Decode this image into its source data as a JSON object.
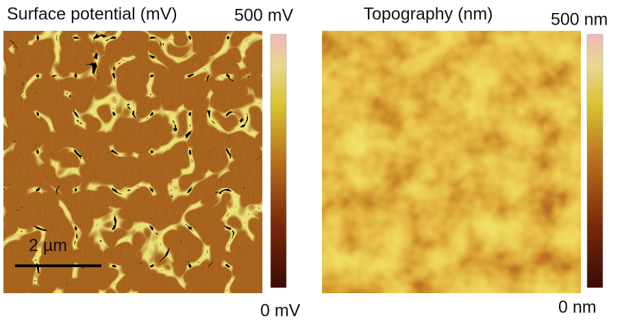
{
  "panels": [
    {
      "title": "Surface potential (mV)",
      "colorbar": {
        "max_label": "500 mV",
        "min_label": "0 mV"
      },
      "scale_bar": "2 µm"
    },
    {
      "title": "Topography (nm)",
      "colorbar": {
        "max_label": "500 nm",
        "min_label": "0 nm"
      }
    }
  ]
}
